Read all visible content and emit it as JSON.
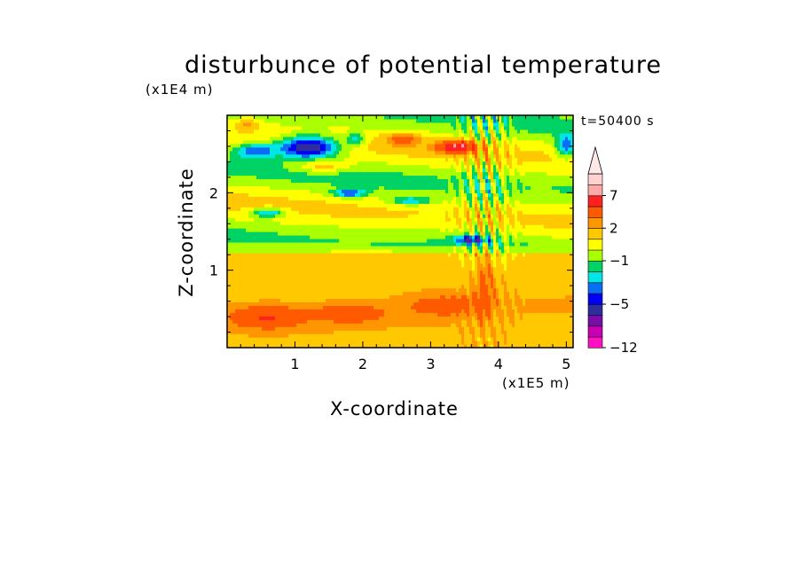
{
  "chart_data": {
    "type": "heatmap",
    "title": "disturbunce of potential temperature",
    "time_label": "t=50400 s",
    "xlabel": "X-coordinate",
    "ylabel": "Z-coordinate",
    "x_unit": "(x1E5 m)",
    "y_unit": "(x1E4 m)",
    "xlim": [
      0,
      5.1
    ],
    "ylim": [
      0,
      3.0
    ],
    "x_ticks": [
      1,
      2,
      3,
      4,
      5
    ],
    "y_ticks": [
      1,
      2
    ],
    "colorbar": {
      "levels": [
        -12,
        -10,
        -8,
        -6,
        -5,
        -4,
        -3,
        -2,
        -1,
        0,
        1,
        2,
        3,
        5,
        7,
        9,
        11
      ],
      "labels": [
        "7",
        "2",
        "−1",
        "−5",
        "−12"
      ],
      "label_values": [
        7,
        2,
        -1,
        -5,
        -12
      ],
      "colors": [
        "#ff10c0",
        "#c800b4",
        "#7a0da8",
        "#2d2da0",
        "#0000f5",
        "#0a6ef5",
        "#00e6e6",
        "#00d264",
        "#aaff00",
        "#ffff00",
        "#ffc800",
        "#ff9600",
        "#ff5a00",
        "#ff2020",
        "#ffa8a8",
        "#ffd2d2"
      ],
      "extend_top": true
    }
  }
}
